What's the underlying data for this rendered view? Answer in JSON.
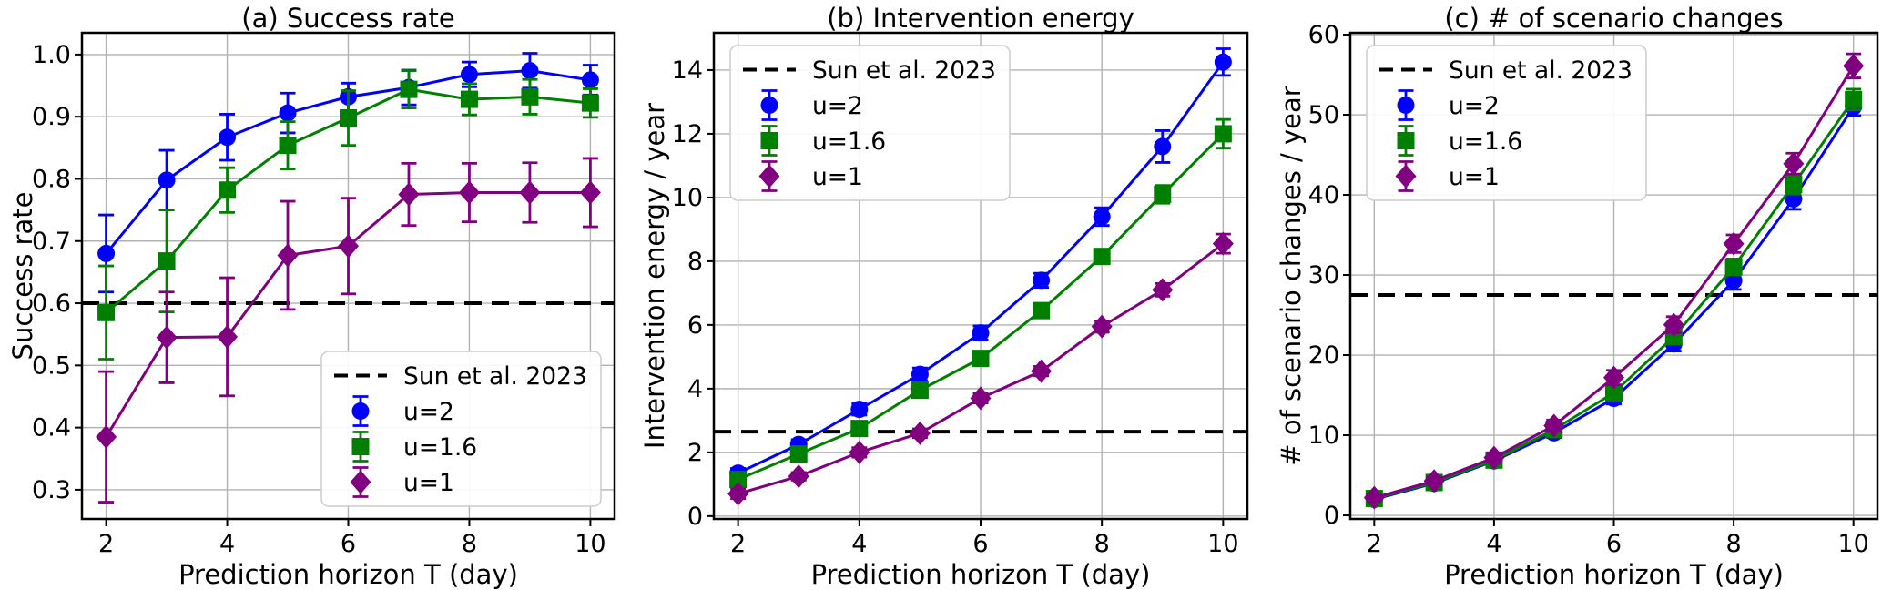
{
  "chart_data": [
    {
      "type": "line",
      "panel": "a",
      "title": "(a) Success rate",
      "xlabel": "Prediction horizon T (day)",
      "ylabel": "Success rate",
      "grid": true,
      "xlim": [
        1.6,
        10.4
      ],
      "ylim": [
        0.253,
        1.035
      ],
      "x": [
        2,
        3,
        4,
        5,
        6,
        7,
        8,
        9,
        10
      ],
      "x_ticks": [
        {
          "v": 2,
          "label": "2"
        },
        {
          "v": 4,
          "label": "4"
        },
        {
          "v": 6,
          "label": "6"
        },
        {
          "v": 8,
          "label": "8"
        },
        {
          "v": 10,
          "label": "10"
        }
      ],
      "y_ticks": [
        {
          "v": 0.3,
          "label": "0.3"
        },
        {
          "v": 0.4,
          "label": "0.4"
        },
        {
          "v": 0.5,
          "label": "0.5"
        },
        {
          "v": 0.6,
          "label": "0.6"
        },
        {
          "v": 0.7,
          "label": "0.7"
        },
        {
          "v": 0.8,
          "label": "0.8"
        },
        {
          "v": 0.9,
          "label": "0.9"
        },
        {
          "v": 1.0,
          "label": "1.0"
        }
      ],
      "baseline": {
        "label": "Sun et al. 2023",
        "value": 0.6,
        "color": "#000000",
        "style": "dashed"
      },
      "series": [
        {
          "name": "u=2",
          "color": "#0000ff",
          "marker": "circle",
          "values": [
            0.68,
            0.798,
            0.867,
            0.906,
            0.932,
            0.947,
            0.968,
            0.974,
            0.959
          ],
          "errors": [
            0.062,
            0.048,
            0.037,
            0.032,
            0.022,
            0.028,
            0.02,
            0.028,
            0.024
          ]
        },
        {
          "name": "u=1.6",
          "color": "#008000",
          "marker": "square",
          "values": [
            0.585,
            0.668,
            0.782,
            0.854,
            0.898,
            0.944,
            0.928,
            0.932,
            0.922
          ],
          "errors": [
            0.075,
            0.082,
            0.036,
            0.038,
            0.044,
            0.03,
            0.025,
            0.028,
            0.023
          ]
        },
        {
          "name": "u=1",
          "color": "#800080",
          "marker": "diamond",
          "values": [
            0.385,
            0.545,
            0.546,
            0.677,
            0.692,
            0.775,
            0.778,
            0.778,
            0.778
          ],
          "errors": [
            0.105,
            0.073,
            0.095,
            0.087,
            0.077,
            0.05,
            0.047,
            0.048,
            0.055
          ]
        }
      ],
      "legend": {
        "position": "lower right",
        "entries": [
          {
            "type": "dashed-line",
            "color": "#000000",
            "label": "Sun et al. 2023"
          },
          {
            "type": "marker",
            "marker": "circle",
            "color": "#0000ff",
            "label": "u=2"
          },
          {
            "type": "marker",
            "marker": "square",
            "color": "#008000",
            "label": "u=1.6"
          },
          {
            "type": "marker",
            "marker": "diamond",
            "color": "#800080",
            "label": "u=1"
          }
        ]
      }
    },
    {
      "type": "line",
      "panel": "b",
      "title": "(b) Intervention energy",
      "xlabel": "Prediction horizon T (day)",
      "ylabel": "Intervention energy / year",
      "grid": true,
      "xlim": [
        1.6,
        10.4
      ],
      "ylim": [
        -0.09,
        15.17
      ],
      "x": [
        2,
        3,
        4,
        5,
        6,
        7,
        8,
        9,
        10
      ],
      "x_ticks": [
        {
          "v": 2,
          "label": "2"
        },
        {
          "v": 4,
          "label": "4"
        },
        {
          "v": 6,
          "label": "6"
        },
        {
          "v": 8,
          "label": "8"
        },
        {
          "v": 10,
          "label": "10"
        }
      ],
      "y_ticks": [
        {
          "v": 0,
          "label": "0"
        },
        {
          "v": 2,
          "label": "2"
        },
        {
          "v": 4,
          "label": "4"
        },
        {
          "v": 6,
          "label": "6"
        },
        {
          "v": 8,
          "label": "8"
        },
        {
          "v": 10,
          "label": "10"
        },
        {
          "v": 12,
          "label": "12"
        },
        {
          "v": 14,
          "label": "14"
        }
      ],
      "baseline": {
        "label": "Sun et al. 2023",
        "value": 2.65,
        "color": "#000000",
        "style": "dashed"
      },
      "series": [
        {
          "name": "u=2",
          "color": "#0000ff",
          "marker": "circle",
          "values": [
            1.35,
            2.25,
            3.35,
            4.45,
            5.75,
            7.4,
            9.4,
            11.6,
            14.25
          ],
          "errors": [
            0.15,
            0.15,
            0.18,
            0.2,
            0.22,
            0.22,
            0.28,
            0.5,
            0.42
          ]
        },
        {
          "name": "u=1.6",
          "color": "#008000",
          "marker": "square",
          "values": [
            1.15,
            1.95,
            2.75,
            3.95,
            4.95,
            6.45,
            8.15,
            10.1,
            12.0
          ],
          "errors": [
            0.12,
            0.12,
            0.14,
            0.15,
            0.16,
            0.18,
            0.2,
            0.28,
            0.45
          ]
        },
        {
          "name": "u=1",
          "color": "#800080",
          "marker": "diamond",
          "values": [
            0.7,
            1.25,
            2.0,
            2.6,
            3.7,
            4.55,
            5.95,
            7.1,
            8.55
          ],
          "errors": [
            0.15,
            0.12,
            0.15,
            0.14,
            0.15,
            0.15,
            0.18,
            0.2,
            0.3
          ]
        }
      ],
      "legend": {
        "position": "upper left",
        "entries": [
          {
            "type": "dashed-line",
            "color": "#000000",
            "label": "Sun et al. 2023"
          },
          {
            "type": "marker",
            "marker": "circle",
            "color": "#0000ff",
            "label": "u=2"
          },
          {
            "type": "marker",
            "marker": "square",
            "color": "#008000",
            "label": "u=1.6"
          },
          {
            "type": "marker",
            "marker": "diamond",
            "color": "#800080",
            "label": "u=1"
          }
        ]
      }
    },
    {
      "type": "line",
      "panel": "c",
      "title": "(c) # of scenario changes",
      "xlabel": "Prediction horizon T (day)",
      "ylabel": "# of scenario changes / year",
      "grid": true,
      "xlim": [
        1.6,
        10.4
      ],
      "ylim": [
        -0.45,
        60.23
      ],
      "x": [
        2,
        3,
        4,
        5,
        6,
        7,
        8,
        9,
        10
      ],
      "x_ticks": [
        {
          "v": 2,
          "label": "2"
        },
        {
          "v": 4,
          "label": "4"
        },
        {
          "v": 6,
          "label": "6"
        },
        {
          "v": 8,
          "label": "8"
        },
        {
          "v": 10,
          "label": "10"
        }
      ],
      "y_ticks": [
        {
          "v": 0,
          "label": "0"
        },
        {
          "v": 10,
          "label": "10"
        },
        {
          "v": 20,
          "label": "20"
        },
        {
          "v": 30,
          "label": "30"
        },
        {
          "v": 40,
          "label": "40"
        },
        {
          "v": 50,
          "label": "50"
        },
        {
          "v": 60,
          "label": "60"
        }
      ],
      "baseline": {
        "label": "Sun et al. 2023",
        "value": 27.5,
        "color": "#000000",
        "style": "dashed"
      },
      "series": [
        {
          "name": "u=2",
          "color": "#0000ff",
          "marker": "circle",
          "values": [
            2.0,
            4.0,
            6.8,
            10.3,
            14.6,
            21.4,
            29.3,
            39.5,
            51.0
          ],
          "errors": [
            0.3,
            0.4,
            0.5,
            0.6,
            0.7,
            0.9,
            1.1,
            1.3,
            1.1
          ]
        },
        {
          "name": "u=1.6",
          "color": "#008000",
          "marker": "square",
          "values": [
            2.1,
            4.1,
            6.9,
            10.7,
            15.3,
            22.3,
            31.0,
            41.3,
            51.9
          ],
          "errors": [
            0.3,
            0.4,
            0.5,
            0.6,
            0.7,
            0.9,
            1.0,
            1.2,
            1.3
          ]
        },
        {
          "name": "u=1",
          "color": "#800080",
          "marker": "diamond",
          "values": [
            2.2,
            4.3,
            7.2,
            11.2,
            17.2,
            23.8,
            33.9,
            43.9,
            56.1
          ],
          "errors": [
            0.4,
            0.5,
            0.6,
            0.7,
            0.9,
            1.0,
            1.1,
            1.3,
            1.5
          ]
        }
      ],
      "legend": {
        "position": "upper left",
        "entries": [
          {
            "type": "dashed-line",
            "color": "#000000",
            "label": "Sun et al. 2023"
          },
          {
            "type": "marker",
            "marker": "circle",
            "color": "#0000ff",
            "label": "u=2"
          },
          {
            "type": "marker",
            "marker": "square",
            "color": "#008000",
            "label": "u=1.6"
          },
          {
            "type": "marker",
            "marker": "diamond",
            "color": "#800080",
            "label": "u=1"
          }
        ]
      }
    }
  ],
  "colors": {
    "u2": "#0000ff",
    "u16": "#008000",
    "u1": "#800080",
    "baseline": "#000000",
    "grid": "#b2b2b2",
    "background": "#ffffff"
  }
}
